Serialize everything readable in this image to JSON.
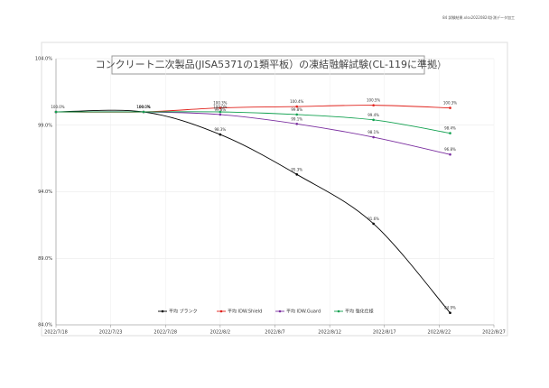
{
  "header": "84 試験結果.xlsx20220824計測データ加工",
  "chart_data": {
    "type": "line",
    "title": "コンクリート二次製品(JISA5371の1類平板）の凍結融解試験(CL-119に準拠)",
    "x": [
      "2022/7/18",
      "2022/7/26",
      "2022/8/2",
      "2022/8/9",
      "2022/8/16",
      "2022/8/23"
    ],
    "xlim": [
      "2022/7/18",
      "2022/8/27"
    ],
    "xticks": [
      "2022/7/18",
      "2022/7/23",
      "2022/7/28",
      "2022/8/2",
      "2022/8/7",
      "2022/8/12",
      "2022/8/17",
      "2022/8/22",
      "2022/8/27"
    ],
    "ylim": [
      84,
      104
    ],
    "yticks": [
      {
        "value": 84,
        "label": "84.0%"
      },
      {
        "value": 89,
        "label": "89.0%"
      },
      {
        "value": 94,
        "label": "94.0%"
      },
      {
        "value": 99,
        "label": "99.0%"
      },
      {
        "value": 104,
        "label": "104.0%"
      }
    ],
    "grid": true,
    "legend": "bottom",
    "series": [
      {
        "name": "平均 ブランク",
        "color": "#000000",
        "values": [
          100.0,
          100.0,
          98.3,
          95.3,
          91.6,
          84.9
        ],
        "value_labels": [
          "100.0%",
          "100.0%",
          "98.3%",
          "95.3%",
          "91.6%",
          "84.9%"
        ]
      },
      {
        "name": "平均 IDW.Shield",
        "color": "#e0211b",
        "values": [
          100.0,
          100.0,
          100.3,
          100.4,
          100.5,
          100.3
        ],
        "value_labels": [
          "100.0%",
          "100.0%",
          "100.3%",
          "100.4%",
          "100.5%",
          "100.3%"
        ]
      },
      {
        "name": "平均 IDW.Guard",
        "color": "#7b2fa0",
        "values": [
          100.0,
          100.0,
          99.8,
          99.1,
          98.1,
          96.8
        ],
        "value_labels": [
          "100.0%",
          "100.0%",
          "99.8%",
          "99.1%",
          "98.1%",
          "96.8%"
        ]
      },
      {
        "name": "平均 強化仕様",
        "color": "#12a150",
        "values": [
          100.0,
          100.0,
          100.0,
          99.8,
          99.4,
          98.4
        ],
        "value_labels": [
          "100.0%",
          "100.0%",
          "100.0%",
          "99.8%",
          "99.4%",
          "98.4%"
        ]
      }
    ]
  }
}
